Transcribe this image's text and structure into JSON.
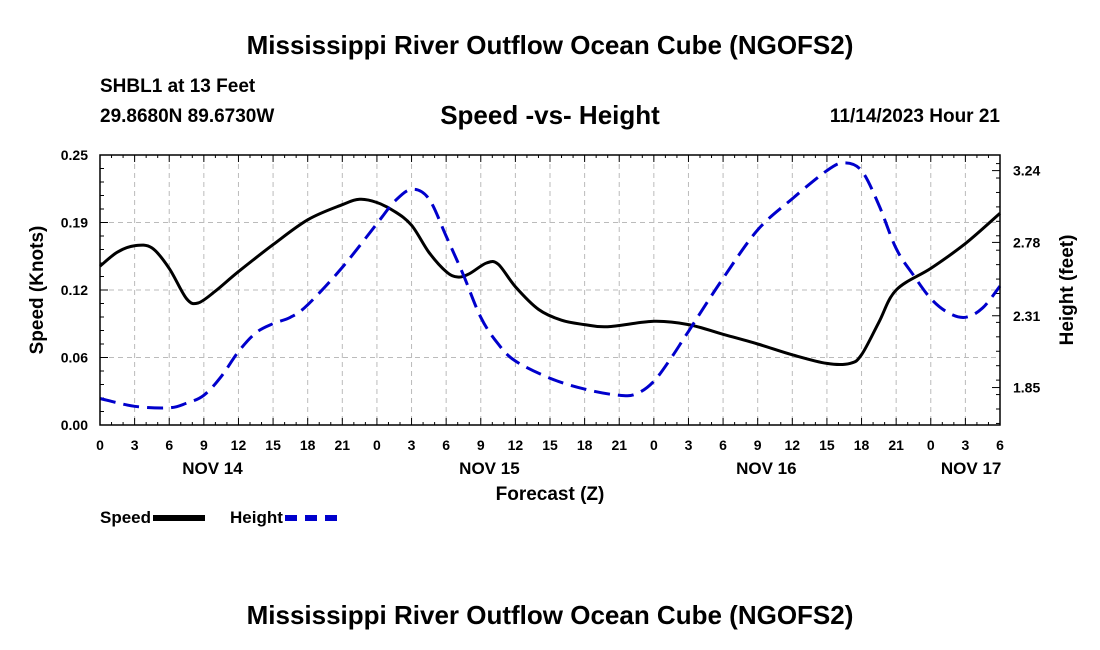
{
  "page": {
    "title": "Mississippi River Outflow Ocean Cube (NGOFS2)",
    "footer_title": "Mississippi River Outflow Ocean Cube (NGOFS2)",
    "station": "SHBL1 at 13 Feet",
    "coordinates": "29.8680N  89.6730W",
    "subtitle": "Speed -vs- Height",
    "datetime": "11/14/2023 Hour 21"
  },
  "legend": {
    "speed_label": "Speed",
    "height_label": "Height"
  },
  "chart_data": {
    "type": "line",
    "title": "Speed -vs- Height",
    "xlabel": "Forecast (Z)",
    "ylabel": "Speed (Knots)",
    "y2label": "Height (feet)",
    "x_range": [
      0,
      78
    ],
    "ylim": [
      0,
      0.25
    ],
    "y2lim": [
      1.61,
      3.34
    ],
    "grid": true,
    "xticks": [
      {
        "x": 0,
        "label": "0"
      },
      {
        "x": 3,
        "label": "3"
      },
      {
        "x": 6,
        "label": "6"
      },
      {
        "x": 9,
        "label": "9"
      },
      {
        "x": 12,
        "label": "12"
      },
      {
        "x": 15,
        "label": "15"
      },
      {
        "x": 18,
        "label": "18"
      },
      {
        "x": 21,
        "label": "21"
      },
      {
        "x": 24,
        "label": "0"
      },
      {
        "x": 27,
        "label": "3"
      },
      {
        "x": 30,
        "label": "6"
      },
      {
        "x": 33,
        "label": "9"
      },
      {
        "x": 36,
        "label": "12"
      },
      {
        "x": 39,
        "label": "15"
      },
      {
        "x": 42,
        "label": "18"
      },
      {
        "x": 45,
        "label": "21"
      },
      {
        "x": 48,
        "label": "0"
      },
      {
        "x": 51,
        "label": "3"
      },
      {
        "x": 54,
        "label": "6"
      },
      {
        "x": 57,
        "label": "9"
      },
      {
        "x": 60,
        "label": "12"
      },
      {
        "x": 63,
        "label": "15"
      },
      {
        "x": 66,
        "label": "18"
      },
      {
        "x": 69,
        "label": "21"
      },
      {
        "x": 72,
        "label": "0"
      },
      {
        "x": 75,
        "label": "3"
      },
      {
        "x": 78,
        "label": "6"
      }
    ],
    "date_labels": [
      {
        "x": 9.75,
        "label": "NOV 14"
      },
      {
        "x": 33.75,
        "label": "NOV 15"
      },
      {
        "x": 57.75,
        "label": "NOV 16"
      },
      {
        "x": 75.5,
        "label": "NOV 17"
      }
    ],
    "yticks": [
      {
        "v": 0.0,
        "label": "0.00"
      },
      {
        "v": 0.0625,
        "label": "0.06"
      },
      {
        "v": 0.125,
        "label": "0.12"
      },
      {
        "v": 0.1875,
        "label": "0.19"
      },
      {
        "v": 0.25,
        "label": "0.25"
      }
    ],
    "y2ticks": [
      {
        "v": 1.85,
        "label": "1.85"
      },
      {
        "v": 2.31,
        "label": "2.31"
      },
      {
        "v": 2.78,
        "label": "2.78"
      },
      {
        "v": 3.24,
        "label": "3.24"
      }
    ],
    "series": [
      {
        "name": "Speed",
        "axis": "left",
        "color": "#000000",
        "dash": false,
        "x": [
          0,
          1.5,
          3,
          4.5,
          6,
          7.5,
          8.5,
          10,
          12,
          15,
          18,
          21,
          22.5,
          24,
          25.5,
          27,
          28.5,
          30,
          31,
          32,
          33.5,
          34.5,
          36,
          38,
          40,
          42,
          44,
          48,
          51,
          54,
          57,
          60,
          63,
          65,
          66,
          67.5,
          69,
          72,
          75,
          78
        ],
        "y": [
          0.147,
          0.16,
          0.166,
          0.164,
          0.145,
          0.117,
          0.113,
          0.124,
          0.142,
          0.167,
          0.19,
          0.204,
          0.209,
          0.206,
          0.198,
          0.185,
          0.16,
          0.142,
          0.137,
          0.14,
          0.15,
          0.149,
          0.128,
          0.107,
          0.097,
          0.093,
          0.091,
          0.096,
          0.093,
          0.084,
          0.075,
          0.065,
          0.057,
          0.057,
          0.065,
          0.095,
          0.125,
          0.145,
          0.168,
          0.196
        ]
      },
      {
        "name": "Height",
        "axis": "right",
        "color": "#0000cc",
        "dash": true,
        "x": [
          0,
          3,
          6,
          7.5,
          9,
          10.5,
          12,
          13.5,
          15,
          16.5,
          18,
          21,
          24,
          25.5,
          27,
          28.5,
          30,
          31.5,
          33,
          34.5,
          36,
          39,
          42,
          45,
          46.5,
          48,
          49.5,
          51,
          54,
          57,
          60,
          63,
          64.5,
          66,
          67.5,
          69,
          70.5,
          72,
          73.5,
          75,
          76.5,
          78
        ],
        "y": [
          1.78,
          1.73,
          1.72,
          1.75,
          1.8,
          1.92,
          2.08,
          2.2,
          2.26,
          2.3,
          2.38,
          2.62,
          2.9,
          3.04,
          3.12,
          3.06,
          2.82,
          2.57,
          2.3,
          2.13,
          2.02,
          1.91,
          1.84,
          1.8,
          1.81,
          1.89,
          2.04,
          2.21,
          2.55,
          2.86,
          3.06,
          3.24,
          3.29,
          3.24,
          3.02,
          2.74,
          2.57,
          2.42,
          2.33,
          2.3,
          2.36,
          2.5
        ]
      }
    ]
  }
}
